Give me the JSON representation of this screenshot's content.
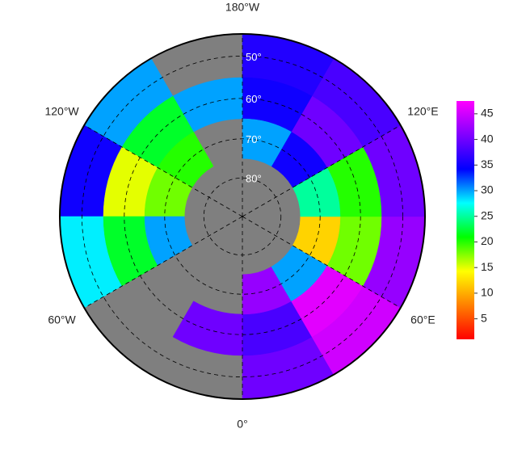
{
  "chart_data": {
    "type": "polar-map",
    "lon_labels": [
      {
        "value": 180,
        "label": "180°W"
      },
      {
        "value": -120,
        "label": "120°W"
      },
      {
        "value": 120,
        "label": "120°E"
      },
      {
        "value": -60,
        "label": "60°W"
      },
      {
        "value": 60,
        "label": "60°E"
      },
      {
        "value": 0,
        "label": "0°"
      }
    ],
    "lat_rings": [
      {
        "value": 50,
        "label": "50°"
      },
      {
        "value": 60,
        "label": "60°"
      },
      {
        "value": 70,
        "label": "70°"
      },
      {
        "value": 80,
        "label": "80°"
      }
    ],
    "lat_limit": 45,
    "cells": {
      "lat_edges": [
        45,
        55,
        65,
        75
      ],
      "lon_edges": [
        0,
        30,
        60,
        90,
        120,
        150,
        180,
        210,
        240,
        270,
        300,
        330,
        360
      ],
      "values": [
        [
          40,
          45,
          42,
          40,
          38,
          36,
          null,
          30,
          35,
          28,
          null,
          null
        ],
        [
          38,
          46,
          18,
          20,
          40,
          35,
          30,
          22,
          15,
          22,
          null,
          40
        ],
        [
          42,
          30,
          12,
          25,
          35,
          30,
          null,
          20,
          18,
          30,
          null,
          null
        ]
      ]
    },
    "clim": [
      1,
      47.5
    ],
    "cticks": [
      5,
      10,
      15,
      20,
      25,
      30,
      35,
      40,
      45
    ],
    "colormap": [
      "#ff0000",
      "#ff8000",
      "#ffff00",
      "#00ff00",
      "#00ffff",
      "#0000ff",
      "#8000ff",
      "#ff00ff"
    ],
    "ocean_color": "#7f7f7f"
  }
}
